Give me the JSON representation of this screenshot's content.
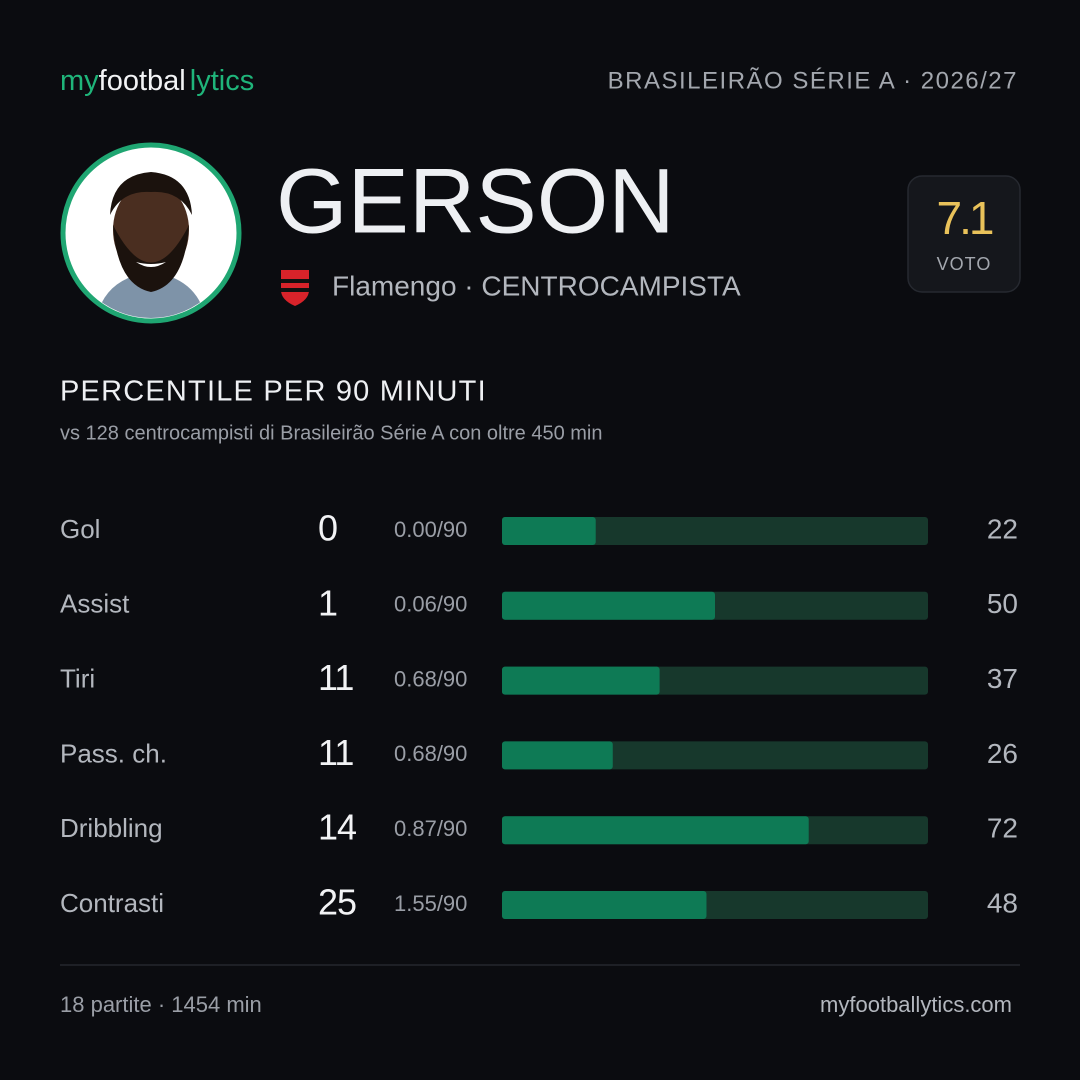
{
  "header": {
    "brand": [
      "my",
      "footbal",
      "lytics"
    ],
    "league": "BRASILEIRÃO SÉRIE A · 2026/27"
  },
  "player": {
    "name": "GERSON",
    "team_role": "Flamengo · CENTROCAMPISTA"
  },
  "rating": {
    "value": 7.1,
    "label": "VOTO"
  },
  "section": {
    "title": "PERCENTILE PER 90 MINUTI",
    "subtitle": "vs 128 centrocampisti di Brasileirão Série A con oltre 450 min"
  },
  "stats": {
    "rows": [
      {
        "label": "Gol",
        "total": 0,
        "per90": "0.00/90",
        "percentile": 22
      },
      {
        "label": "Assist",
        "total": 1,
        "per90": "0.06/90",
        "percentile": 50
      },
      {
        "label": "Tiri",
        "total": 11,
        "per90": "0.68/90",
        "percentile": 37
      },
      {
        "label": "Pass. ch.",
        "total": 11,
        "per90": "0.68/90",
        "percentile": 26
      },
      {
        "label": "Dribbling",
        "total": 14,
        "per90": "0.87/90",
        "percentile": 72
      },
      {
        "label": "Contrasti",
        "total": 25,
        "per90": "1.55/90",
        "percentile": 48
      }
    ]
  },
  "footer": {
    "left": "18 partite · 1454 min",
    "right": "myfootballytics.com"
  }
}
